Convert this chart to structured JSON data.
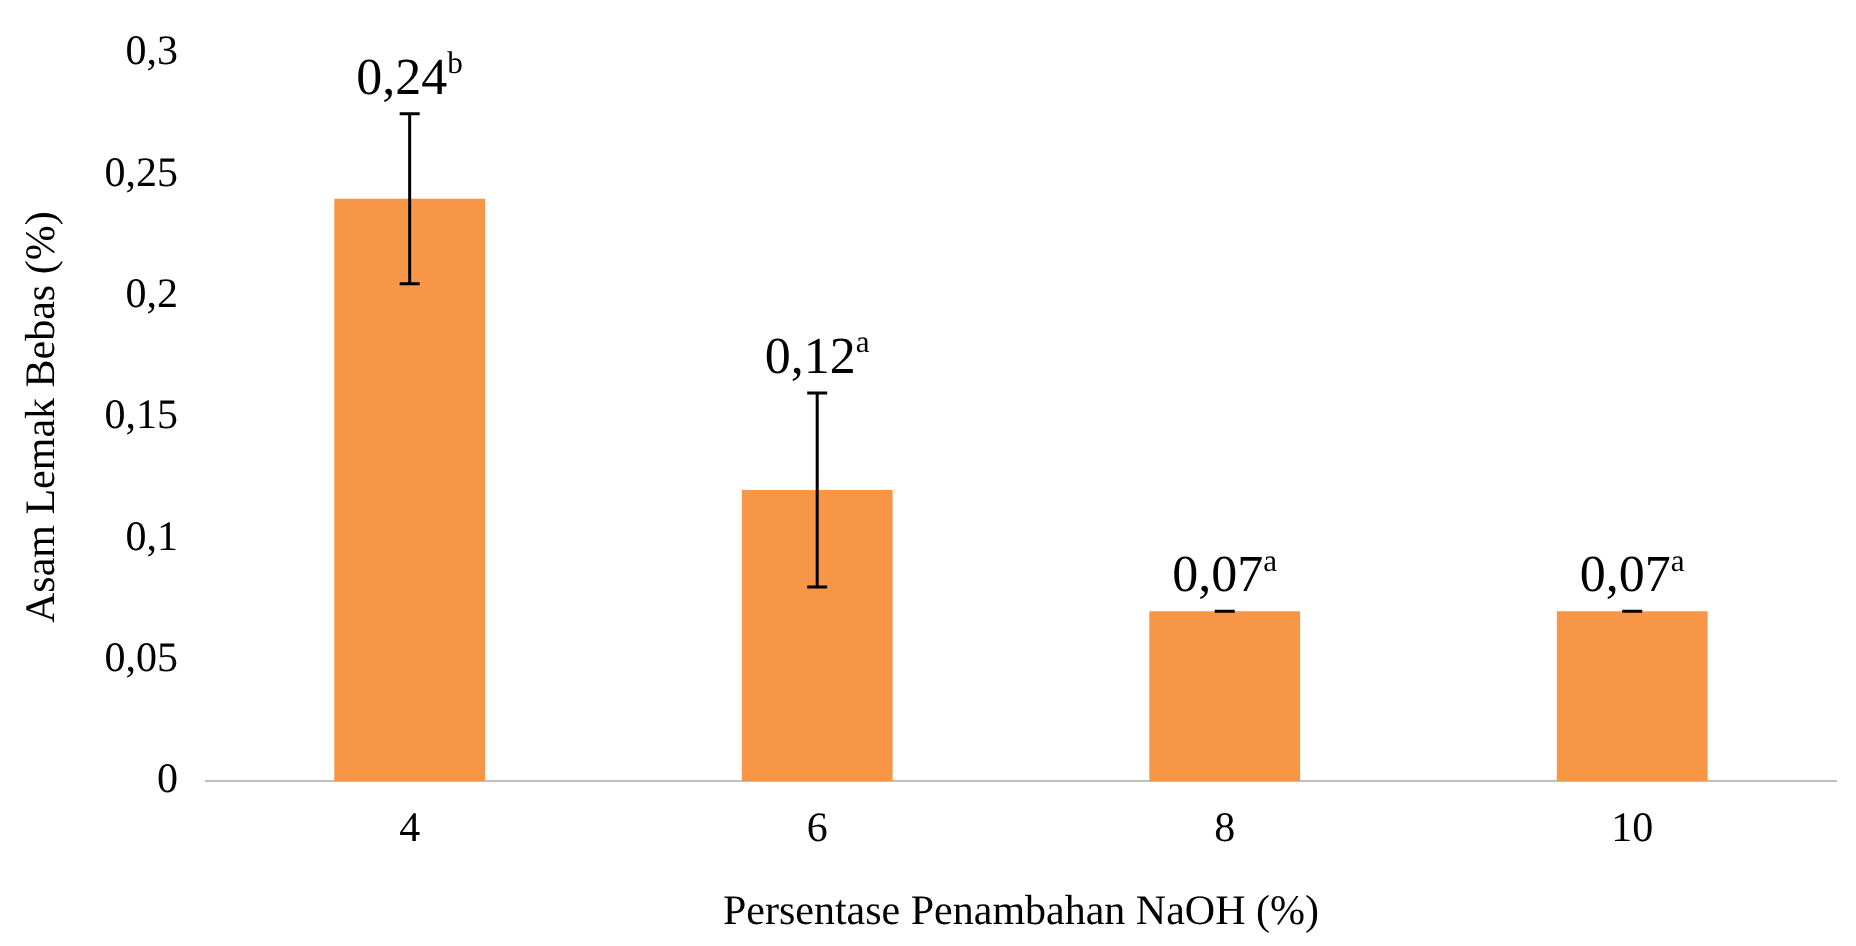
{
  "chart_data": {
    "type": "bar",
    "xlabel": "Persentase Penambahan NaOH (%)",
    "ylabel": "Asam Lemak Bebas (%)",
    "categories": [
      "4",
      "6",
      "8",
      "10"
    ],
    "values": [
      0.24,
      0.12,
      0.07,
      0.07
    ],
    "errors": [
      0.035,
      0.04,
      0,
      0
    ],
    "value_labels": [
      "0,24$^{b}$",
      "0,12$^{a}$",
      "0,07$^{a}$",
      "0,07$^{a}$"
    ],
    "color": "#f79646",
    "ylim": [
      0,
      0.3
    ],
    "yticks": [
      0,
      {
        "value": 0.05,
        "label": "0,05"
      },
      {
        "value": 0.1,
        "label": "0,1"
      },
      {
        "value": 0.15,
        "label": "0,15"
      },
      {
        "value": 0.2,
        "label": "0,2"
      },
      {
        "value": 0.25,
        "label": "0,25"
      },
      {
        "value": 0.3,
        "label": "0,3"
      }
    ],
    "grid": false,
    "legend": false
  }
}
